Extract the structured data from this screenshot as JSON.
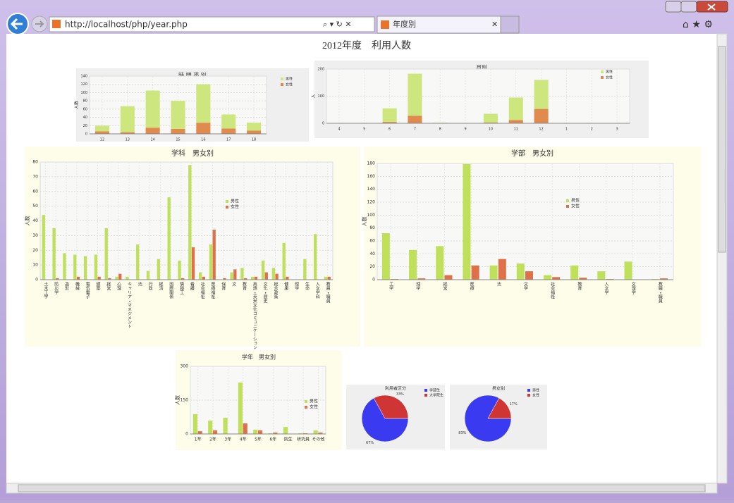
{
  "browser": {
    "url": "http://localhost/php/year.php",
    "tab_title": "年度別"
  },
  "page_title": "2012年度　利用人数",
  "chart_data": [
    {
      "type": "bar",
      "stacked": true,
      "title": "時 間 帯 別",
      "ylabel": "人数",
      "categories": [
        "12",
        "13",
        "14",
        "15",
        "16",
        "17",
        "18"
      ],
      "series": [
        {
          "name": "女性",
          "color": "#e08a4e",
          "values": [
            6,
            4,
            15,
            12,
            27,
            13,
            8
          ]
        },
        {
          "name": "男性",
          "color": "#cde67e",
          "values": [
            14,
            63,
            90,
            68,
            93,
            34,
            19
          ]
        }
      ],
      "ylim": [
        0,
        140
      ],
      "yticks": [
        0,
        20,
        40,
        60,
        80,
        100,
        120,
        140
      ],
      "grid": true,
      "legend": "right"
    },
    {
      "type": "bar",
      "stacked": true,
      "title": "月別",
      "ylabel": "人",
      "categories": [
        "4",
        "5",
        "6",
        "7",
        "8",
        "9",
        "10",
        "11",
        "12",
        "1",
        "2",
        "3"
      ],
      "series": [
        {
          "name": "女性",
          "color": "#e08a4e",
          "values": [
            0,
            0,
            5,
            28,
            0,
            0,
            3,
            12,
            53,
            0,
            0,
            0
          ]
        },
        {
          "name": "男性",
          "color": "#cde67e",
          "values": [
            0,
            0,
            50,
            155,
            2,
            0,
            32,
            83,
            107,
            0,
            0,
            0
          ]
        }
      ],
      "ylim": [
        0,
        200
      ],
      "yticks": [
        0,
        100,
        200
      ],
      "grid": true,
      "legend": "right"
    },
    {
      "type": "bar",
      "stacked": false,
      "title": "学科　男女別",
      "ylabel": "人数",
      "categories": [
        "土木工学",
        "防災学",
        "造形",
        "機械",
        "電気電子",
        "建築",
        "経営",
        "心理",
        "キャリア・マネジメント",
        "法",
        "行政",
        "経済",
        "国際関係",
        "情報工",
        "看護",
        "社会福祉",
        "医療福祉",
        "保育",
        "文",
        "教育",
        "英語・英米文化コミュニケーション",
        "文化・歴史",
        "総合政策",
        "健康",
        "理学",
        "生命",
        "人文学科",
        "教員・職員"
      ],
      "series": [
        {
          "name": "男性",
          "color": "#bfe05a",
          "values": [
            44,
            35,
            18,
            17,
            16,
            17,
            35,
            2,
            2,
            24,
            6,
            14,
            56,
            13,
            78,
            5,
            24,
            0,
            5,
            8,
            2,
            13,
            8,
            25,
            0,
            14,
            31,
            2
          ]
        },
        {
          "name": "女性",
          "color": "#e0704a",
          "values": [
            0,
            1,
            0,
            2,
            0,
            2,
            1,
            4,
            0,
            0,
            0,
            0,
            0,
            1,
            22,
            2,
            34,
            1,
            7,
            1,
            2,
            5,
            4,
            2,
            0,
            0,
            0,
            2
          ]
        }
      ],
      "ylim": [
        0,
        80
      ],
      "yticks": [
        0,
        10,
        20,
        30,
        40,
        50,
        60,
        70,
        80
      ],
      "grid": true,
      "legend": "center"
    },
    {
      "type": "bar",
      "stacked": false,
      "title": "学部　男女別",
      "ylabel": "人数",
      "categories": [
        "工学",
        "理学",
        "経営",
        "医療",
        "法",
        "文学",
        "社会福祉",
        "教育",
        "人文学",
        "文理学",
        "教職・職員"
      ],
      "series": [
        {
          "name": "男性",
          "color": "#bfe05a",
          "values": [
            72,
            46,
            52,
            179,
            22,
            25,
            7,
            22,
            13,
            28,
            1
          ]
        },
        {
          "name": "女性",
          "color": "#e0704a",
          "values": [
            1,
            2,
            7,
            22,
            32,
            13,
            4,
            3,
            1,
            0,
            2
          ]
        }
      ],
      "ylim": [
        0,
        180
      ],
      "yticks": [
        0,
        20,
        40,
        60,
        80,
        100,
        120,
        140,
        160,
        180
      ],
      "grid": true,
      "legend": "center"
    },
    {
      "type": "bar",
      "stacked": false,
      "title": "学年　男女別",
      "ylabel": "人数",
      "categories": [
        "1年",
        "2年",
        "3年",
        "4年",
        "5年",
        "6年",
        "院生",
        "研究員",
        "その他"
      ],
      "series": [
        {
          "name": "男性",
          "color": "#bfe05a",
          "values": [
            88,
            59,
            72,
            228,
            19,
            3,
            31,
            3,
            16
          ]
        },
        {
          "name": "女性",
          "color": "#e0704a",
          "values": [
            12,
            16,
            0,
            47,
            16,
            6,
            0,
            3,
            6
          ]
        }
      ],
      "ylim": [
        0,
        300
      ],
      "yticks": [
        0,
        150,
        300
      ],
      "grid": true,
      "legend": "right"
    },
    {
      "type": "pie",
      "title": "利用者区分",
      "categories": [
        "学部生",
        "大学院生"
      ],
      "values": [
        67,
        33
      ],
      "value_labels": [
        "67%",
        "33%"
      ],
      "colors": [
        "#3a3af0",
        "#d03535"
      ]
    },
    {
      "type": "pie",
      "title": "男女別",
      "categories": [
        "男性",
        "女性"
      ],
      "values": [
        83,
        17
      ],
      "value_labels": [
        "83%",
        "17%"
      ],
      "colors": [
        "#3a3af0",
        "#d03535"
      ]
    }
  ]
}
